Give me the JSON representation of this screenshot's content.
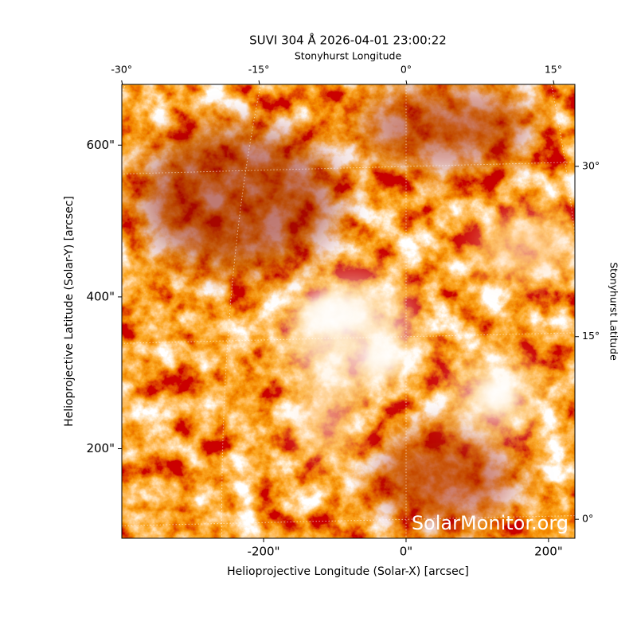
{
  "chart_data": {
    "type": "image",
    "title": "SUVI 304 Å 2026-04-01 23:00:22",
    "xlabel": "Helioprojective Longitude (Solar-X) [arcsec]",
    "ylabel": "Helioprojective Latitude (Solar-Y) [arcsec]",
    "top_label": "Stonyhurst Longitude",
    "right_label": "Stonyhurst Latitude",
    "watermark": "SolarMonitor.org",
    "xlim": [
      -399,
      237
    ],
    "ylim": [
      82,
      680
    ],
    "xticks": [
      {
        "value": -200,
        "label": "-200\""
      },
      {
        "value": 0,
        "label": "0\""
      },
      {
        "value": 200,
        "label": "200\""
      }
    ],
    "yticks": [
      {
        "value": 200,
        "label": "200\""
      },
      {
        "value": 400,
        "label": "400\""
      },
      {
        "value": 600,
        "label": "600\""
      }
    ],
    "lon_ticks": [
      {
        "value": -30,
        "label": "-30°"
      },
      {
        "value": -15,
        "label": "-15°"
      },
      {
        "value": 0,
        "label": "0°"
      },
      {
        "value": 15,
        "label": "15°"
      }
    ],
    "lat_ticks": [
      {
        "value": 0,
        "label": "0°"
      },
      {
        "value": 15,
        "label": "15°"
      },
      {
        "value": 30,
        "label": "30°"
      }
    ],
    "grid": true
  }
}
